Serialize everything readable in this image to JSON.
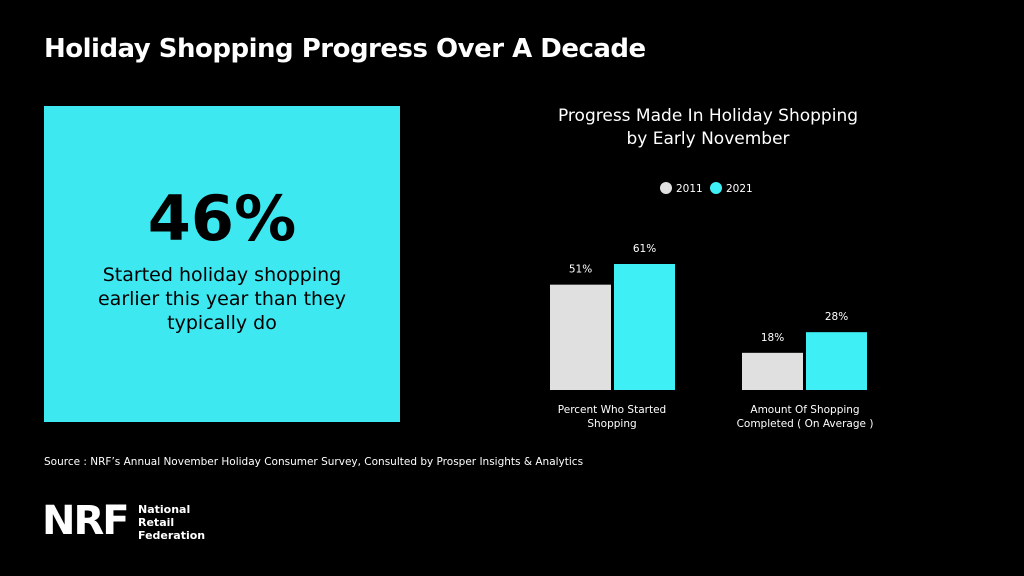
{
  "header": {
    "title": "Holiday Shopping Progress Over A Decade"
  },
  "stat": {
    "value": "46%",
    "text": "Started holiday shopping earlier this year than they typically do"
  },
  "chart_data": {
    "type": "bar",
    "title": "Progress Made In Holiday Shopping by Early November",
    "categories": [
      "Percent Who Started Shopping",
      "Amount Of Shopping Completed ( On Average )"
    ],
    "series": [
      {
        "name": "2011",
        "color": "#e0e0e0",
        "values": [
          51,
          18
        ],
        "value_labels": [
          "51%",
          "18%"
        ]
      },
      {
        "name": "2021",
        "color": "#3ef0f5",
        "values": [
          61,
          28
        ],
        "value_labels": [
          "61%",
          "28%"
        ]
      }
    ]
  },
  "source": "Source : NRF’s Annual November Holiday Consumer Survey, Consulted by Prosper Insights & Analytics",
  "logo": {
    "mark": "NRF",
    "name": "National Retail Federation"
  }
}
